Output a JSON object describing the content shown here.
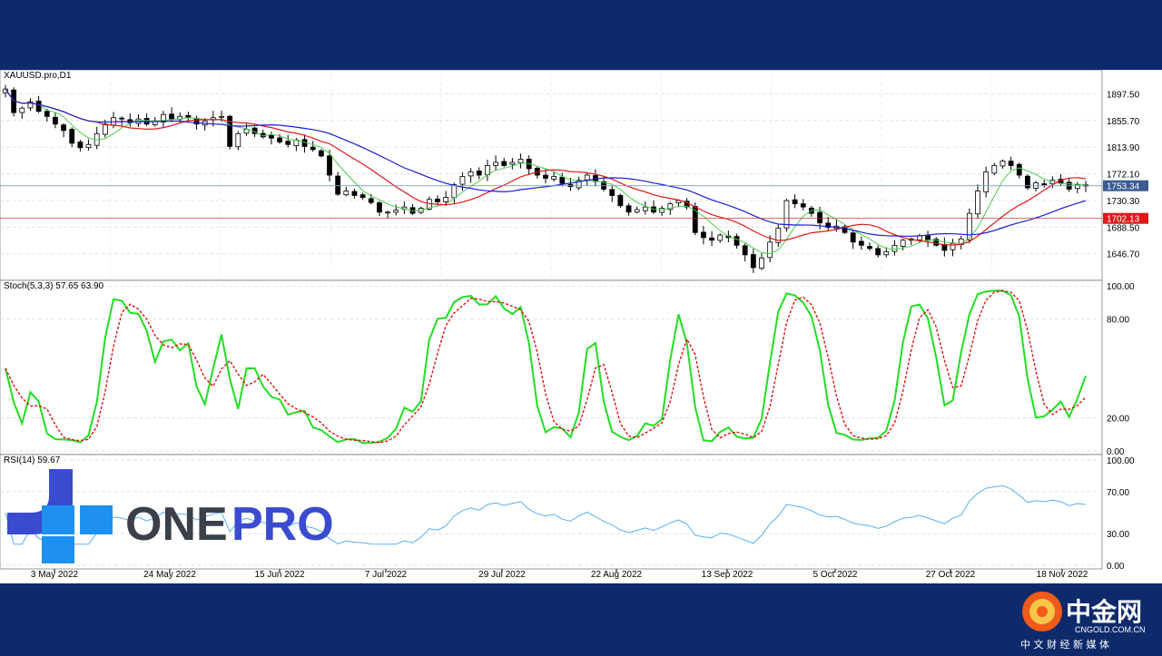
{
  "chart_data": [
    {
      "type": "candlestick",
      "title": "XAUUSD.pro,D1",
      "ylim": [
        1605,
        1935
      ],
      "y_ticks": [
        "1897.50",
        "1855.70",
        "1813.90",
        "1772.10",
        "1730.30",
        "1688.50",
        "1646.70"
      ],
      "current_price": "1753.34",
      "level_line": "1702.13",
      "x_tick_labels": [
        "3 May 2022",
        "24 May 2022",
        "15 Jun 2022",
        "7 Jul 2022",
        "29 Jul 2022",
        "22 Aug 2022",
        "13 Sep 2022",
        "5 Oct 2022",
        "27 Oct 2022",
        "18 Nov 2022"
      ],
      "closes": [
        1905,
        1868,
        1875,
        1885,
        1870,
        1862,
        1850,
        1840,
        1820,
        1813,
        1818,
        1835,
        1850,
        1860,
        1858,
        1852,
        1858,
        1850,
        1855,
        1865,
        1858,
        1862,
        1860,
        1850,
        1855,
        1860,
        1862,
        1815,
        1835,
        1842,
        1835,
        1830,
        1828,
        1822,
        1818,
        1825,
        1815,
        1810,
        1800,
        1770,
        1740,
        1745,
        1738,
        1735,
        1727,
        1712,
        1712,
        1715,
        1720,
        1710,
        1718,
        1732,
        1728,
        1735,
        1755,
        1768,
        1775,
        1770,
        1785,
        1790,
        1785,
        1790,
        1795,
        1780,
        1770,
        1765,
        1768,
        1757,
        1752,
        1762,
        1770,
        1760,
        1748,
        1738,
        1722,
        1712,
        1716,
        1720,
        1712,
        1718,
        1725,
        1730,
        1720,
        1680,
        1672,
        1668,
        1676,
        1672,
        1660,
        1645,
        1625,
        1640,
        1665,
        1687,
        1730,
        1725,
        1720,
        1710,
        1695,
        1688,
        1690,
        1680,
        1665,
        1660,
        1655,
        1645,
        1650,
        1660,
        1668,
        1670,
        1675,
        1668,
        1660,
        1652,
        1663,
        1670,
        1710,
        1745,
        1775,
        1785,
        1792,
        1785,
        1770,
        1750,
        1758,
        1755,
        1762,
        1758,
        1748,
        1755,
        1753
      ]
    },
    {
      "type": "line",
      "title": "Stoch(5,3,3) 57.65 63.90",
      "ylim": [
        0,
        100
      ],
      "y_ticks": [
        "100.00",
        "80.00",
        "20.00",
        "0.00"
      ]
    },
    {
      "type": "line",
      "title": "RSI(14) 59.67",
      "ylim": [
        0,
        100
      ],
      "y_ticks": [
        "100.00",
        "70.00",
        "30.00",
        "0.00"
      ]
    }
  ],
  "colors": {
    "ma_blue": "#1c1cd6",
    "ma_red": "#e01818",
    "ma_green": "#4ccd4c",
    "stoch_main": "#22dd22",
    "stoch_signal": "#dd1111",
    "rsi": "#5aaff0",
    "price_tag": "#3a5c8f",
    "level_tag": "#e01818",
    "frame": "#0e2a6b"
  },
  "logo": {
    "text_one": "ONE",
    "text_pro": "PRO"
  },
  "watermark": {
    "brand": "中金网",
    "url": "CNGOLD.COM.CN",
    "tagline": "中 文 财 经 新 媒 体"
  }
}
